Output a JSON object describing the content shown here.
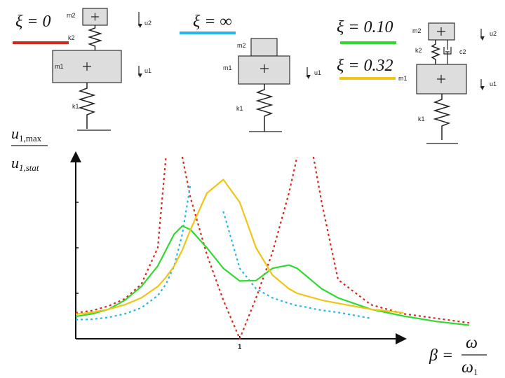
{
  "chart_data": {
    "type": "line",
    "x": [
      0,
      0.1,
      0.2,
      0.3,
      0.4,
      0.5,
      0.55,
      0.6,
      0.65,
      0.7,
      0.8,
      0.9,
      1.0,
      1.1,
      1.2,
      1.3,
      1.35,
      1.4,
      1.45,
      1.5,
      1.6,
      1.8,
      2.0,
      2.2,
      2.4
    ],
    "series": [
      {
        "name": "ξ = 0",
        "color": "#d42a1e",
        "dashed": true,
        "values": [
          0.57,
          0.62,
          0.72,
          0.88,
          1.2,
          2.0,
          4.0,
          null,
          4.0,
          3.1,
          1.85,
          0.85,
          0,
          0.9,
          1.9,
          3.2,
          4.0,
          null,
          4.0,
          3.0,
          1.3,
          0.75,
          0.55,
          0.45,
          0.35
        ]
      },
      {
        "name": "ξ = ∞",
        "color": "#2ab4e8",
        "dashed": true,
        "values": [
          0.42,
          0.43,
          0.47,
          0.55,
          0.68,
          0.95,
          1.2,
          1.6,
          2.3,
          3.4,
          null,
          2.8,
          1.55,
          1.1,
          0.9,
          0.78,
          0.73,
          0.7,
          0.66,
          0.63,
          0.58,
          0.45,
          null,
          null,
          null
        ]
      },
      {
        "name": "ξ = 0.10",
        "color": "#33d933",
        "dashed": false,
        "values": [
          0.49,
          0.55,
          0.65,
          0.85,
          1.15,
          1.6,
          1.95,
          2.3,
          2.48,
          2.4,
          2.0,
          1.55,
          1.27,
          1.28,
          1.55,
          1.62,
          1.55,
          1.4,
          1.25,
          1.1,
          0.9,
          0.65,
          0.5,
          0.38,
          0.3
        ]
      },
      {
        "name": "ξ = 0.32",
        "color": "#f0c419",
        "dashed": false,
        "values": [
          0.54,
          0.58,
          0.65,
          0.75,
          0.9,
          1.15,
          1.35,
          1.6,
          1.95,
          2.4,
          3.2,
          3.5,
          3.0,
          2.0,
          1.4,
          1.1,
          1.0,
          0.95,
          0.9,
          0.85,
          0.78,
          0.65,
          0.57,
          null,
          null
        ]
      }
    ],
    "xlim": [
      0,
      2.4
    ],
    "xticks": [
      1
    ],
    "ylim": [
      0,
      4
    ],
    "yticks": [
      1,
      2,
      3
    ],
    "y_label": {
      "numerator": [
        "u",
        "1,max"
      ],
      "denominator": [
        "u",
        "1,stat"
      ]
    },
    "x_label": {
      "lhs": "β =",
      "numerator": "ω",
      "denominator": [
        "ω",
        "1"
      ]
    }
  },
  "diagrams": [
    {
      "m2": "m2",
      "k2": "k2",
      "m1": "m1",
      "k1": "k1",
      "u2": "u2",
      "u1": "u1"
    },
    {
      "m2": "m2",
      "m1": "m1",
      "k1": "k1",
      "u1": "u1"
    },
    {
      "m2": "m2",
      "k2": "k2",
      "c2": "c2",
      "m1": "m1",
      "k1": "k1",
      "u2": "u2",
      "u1": "u1"
    }
  ]
}
